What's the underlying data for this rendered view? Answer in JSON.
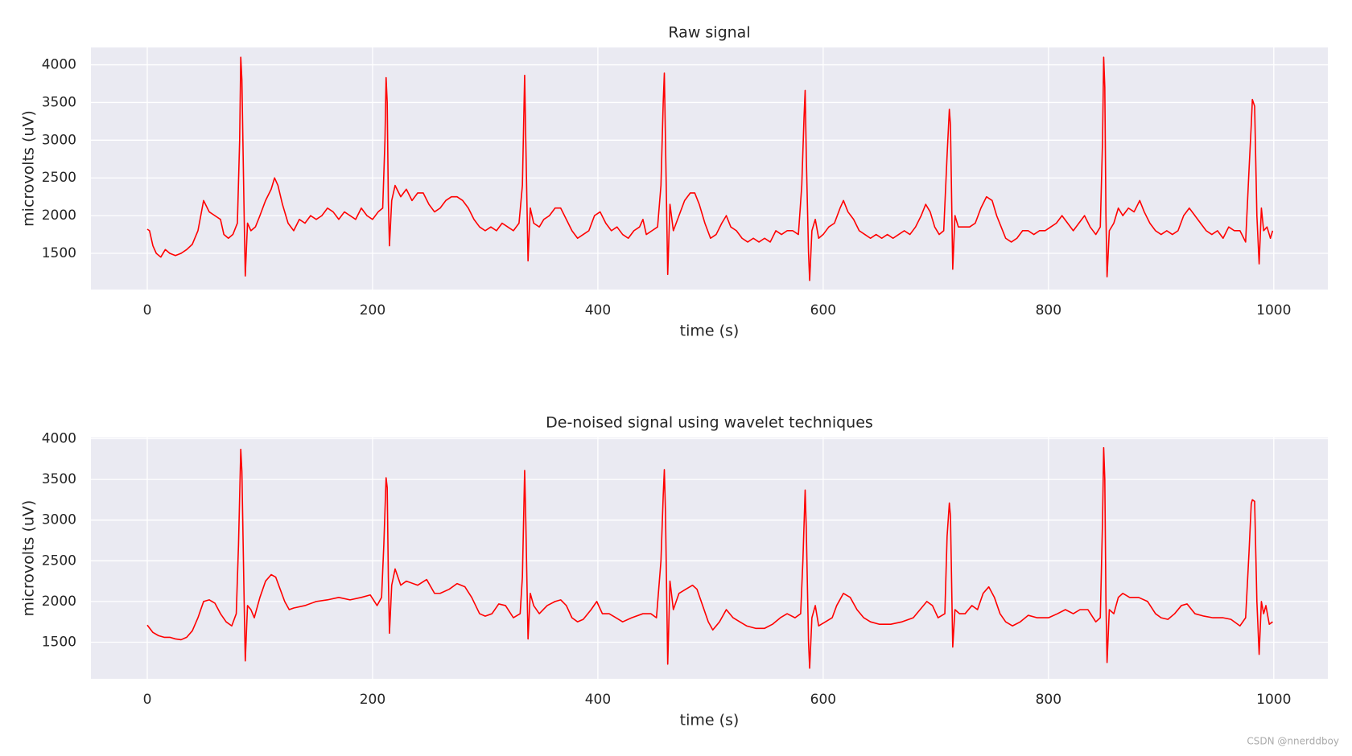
{
  "chart_data": [
    {
      "type": "line",
      "title": "Raw signal",
      "xlabel": "time (s)",
      "ylabel": "microvolts (uV)",
      "xlim": [
        -50,
        1048
      ],
      "ylim": [
        1020,
        4230
      ],
      "xticks": [
        0,
        200,
        400,
        600,
        800,
        1000
      ],
      "yticks": [
        1500,
        2000,
        2500,
        3000,
        3500,
        4000
      ],
      "grid": true,
      "series": [
        {
          "name": "raw",
          "color": "#ff0000",
          "x": [
            0,
            2,
            5,
            8,
            12,
            16,
            20,
            25,
            30,
            35,
            40,
            45,
            50,
            55,
            60,
            65,
            68,
            72,
            76,
            80,
            82,
            83,
            84,
            86,
            87,
            89,
            92,
            96,
            100,
            105,
            110,
            113,
            116,
            120,
            125,
            130,
            135,
            140,
            145,
            150,
            155,
            160,
            165,
            170,
            175,
            180,
            185,
            190,
            195,
            200,
            205,
            209,
            211,
            212,
            213,
            214,
            215,
            217,
            220,
            225,
            230,
            235,
            240,
            245,
            250,
            255,
            260,
            265,
            270,
            275,
            280,
            285,
            290,
            295,
            300,
            305,
            310,
            315,
            320,
            325,
            330,
            333,
            335,
            336,
            338,
            340,
            343,
            348,
            352,
            357,
            362,
            367,
            372,
            377,
            382,
            387,
            392,
            397,
            402,
            407,
            412,
            417,
            422,
            427,
            432,
            437,
            440,
            443,
            448,
            453,
            456,
            458,
            459,
            460,
            462,
            464,
            467,
            472,
            477,
            482,
            486,
            490,
            495,
            500,
            505,
            510,
            514,
            518,
            523,
            528,
            533,
            538,
            543,
            548,
            553,
            558,
            563,
            568,
            573,
            578,
            581,
            583,
            584,
            585,
            587,
            588,
            590,
            593,
            596,
            600,
            605,
            610,
            615,
            618,
            622,
            627,
            632,
            637,
            642,
            647,
            652,
            657,
            662,
            667,
            672,
            677,
            682,
            687,
            691,
            695,
            699,
            703,
            707,
            710,
            712,
            713,
            715,
            717,
            720,
            725,
            730,
            735,
            740,
            745,
            750,
            754,
            758,
            762,
            767,
            772,
            777,
            782,
            787,
            792,
            797,
            802,
            807,
            812,
            817,
            822,
            827,
            832,
            837,
            842,
            846,
            848,
            849,
            850,
            851,
            852,
            854,
            858,
            862,
            866,
            871,
            876,
            881,
            885,
            890,
            895,
            900,
            905,
            910,
            915,
            920,
            925,
            930,
            935,
            940,
            945,
            950,
            955,
            960,
            965,
            970,
            975,
            978,
            980,
            981,
            983,
            985,
            987,
            989,
            991,
            994,
            997,
            999
          ],
          "values": [
            1820,
            1800,
            1600,
            1500,
            1450,
            1550,
            1500,
            1470,
            1500,
            1550,
            1620,
            1800,
            2200,
            2050,
            2000,
            1950,
            1750,
            1700,
            1750,
            1900,
            3000,
            4100,
            3800,
            2000,
            1200,
            1900,
            1800,
            1850,
            2000,
            2200,
            2350,
            2500,
            2400,
            2150,
            1900,
            1800,
            1950,
            1900,
            2000,
            1950,
            2000,
            2100,
            2050,
            1950,
            2050,
            2000,
            1950,
            2100,
            2000,
            1950,
            2050,
            2100,
            3000,
            3830,
            3500,
            2200,
            1600,
            2200,
            2400,
            2250,
            2350,
            2200,
            2300,
            2300,
            2150,
            2050,
            2100,
            2200,
            2250,
            2250,
            2200,
            2100,
            1950,
            1850,
            1800,
            1850,
            1800,
            1900,
            1850,
            1800,
            1900,
            2400,
            3860,
            3000,
            1400,
            2100,
            1900,
            1850,
            1950,
            2000,
            2100,
            2100,
            1950,
            1800,
            1700,
            1750,
            1800,
            2000,
            2050,
            1900,
            1800,
            1850,
            1750,
            1700,
            1800,
            1850,
            1950,
            1750,
            1800,
            1850,
            2400,
            3500,
            3890,
            3000,
            1220,
            2150,
            1800,
            2000,
            2200,
            2300,
            2300,
            2150,
            1900,
            1700,
            1750,
            1900,
            2000,
            1850,
            1800,
            1700,
            1650,
            1700,
            1650,
            1700,
            1650,
            1800,
            1750,
            1800,
            1800,
            1750,
            2400,
            3300,
            3660,
            2800,
            1500,
            1140,
            1800,
            1950,
            1700,
            1750,
            1850,
            1900,
            2100,
            2200,
            2050,
            1950,
            1800,
            1750,
            1700,
            1750,
            1700,
            1750,
            1700,
            1750,
            1800,
            1750,
            1850,
            2000,
            2150,
            2050,
            1850,
            1750,
            1800,
            2800,
            3410,
            3200,
            1290,
            2000,
            1850,
            1850,
            1850,
            1900,
            2100,
            2250,
            2200,
            2000,
            1850,
            1700,
            1650,
            1700,
            1800,
            1800,
            1750,
            1800,
            1800,
            1850,
            1900,
            2000,
            1900,
            1800,
            1900,
            2000,
            1850,
            1750,
            1850,
            3000,
            4100,
            3700,
            2000,
            1190,
            1800,
            1900,
            2100,
            2000,
            2100,
            2050,
            2200,
            2050,
            1900,
            1800,
            1750,
            1800,
            1750,
            1800,
            2000,
            2100,
            2000,
            1900,
            1800,
            1750,
            1800,
            1700,
            1850,
            1800,
            1800,
            1650,
            2600,
            3200,
            3540,
            3450,
            2000,
            1360,
            2100,
            1800,
            1850,
            1700,
            1800
          ]
        }
      ]
    },
    {
      "type": "line",
      "title": "De-noised signal using wavelet techniques",
      "xlabel": "time (s)",
      "ylabel": "microvolts (uV)",
      "xlim": [
        -50,
        1048
      ],
      "ylim": [
        1050,
        4015
      ],
      "xticks": [
        0,
        200,
        400,
        600,
        800,
        1000
      ],
      "yticks": [
        1500,
        2000,
        2500,
        3000,
        3500,
        4000
      ],
      "grid": true,
      "series": [
        {
          "name": "denoised",
          "color": "#ff0000",
          "x": [
            0,
            5,
            10,
            15,
            20,
            25,
            30,
            35,
            40,
            45,
            50,
            55,
            60,
            65,
            70,
            75,
            79,
            81,
            83,
            84,
            86,
            87,
            89,
            92,
            95,
            100,
            105,
            110,
            114,
            118,
            122,
            126,
            130,
            140,
            150,
            160,
            170,
            180,
            190,
            198,
            204,
            208,
            210,
            212,
            213,
            214,
            215,
            217,
            220,
            225,
            230,
            240,
            248,
            255,
            260,
            268,
            275,
            282,
            288,
            295,
            300,
            306,
            312,
            318,
            325,
            331,
            333,
            335,
            336,
            338,
            340,
            343,
            348,
            355,
            362,
            367,
            372,
            377,
            382,
            387,
            394,
            399,
            404,
            410,
            416,
            422,
            430,
            440,
            447,
            452,
            456,
            458,
            459,
            460,
            462,
            464,
            467,
            472,
            478,
            484,
            488,
            493,
            498,
            502,
            508,
            514,
            520,
            526,
            532,
            540,
            548,
            555,
            562,
            568,
            575,
            580,
            582,
            584,
            585,
            587,
            588,
            590,
            593,
            596,
            602,
            608,
            612,
            618,
            624,
            630,
            636,
            642,
            650,
            660,
            670,
            680,
            686,
            692,
            697,
            702,
            708,
            710,
            712,
            713,
            715,
            717,
            721,
            726,
            732,
            737,
            742,
            747,
            752,
            757,
            762,
            768,
            775,
            782,
            790,
            800,
            808,
            815,
            822,
            828,
            835,
            842,
            846,
            848,
            849,
            850,
            851,
            852,
            854,
            858,
            862,
            866,
            872,
            880,
            888,
            895,
            900,
            906,
            912,
            918,
            923,
            930,
            938,
            946,
            955,
            962,
            970,
            975,
            978,
            980,
            981,
            983,
            985,
            987,
            989,
            991,
            993,
            996,
            999
          ],
          "values": [
            1710,
            1620,
            1580,
            1560,
            1560,
            1540,
            1530,
            1560,
            1640,
            1800,
            2000,
            2020,
            1980,
            1850,
            1750,
            1700,
            1850,
            2700,
            3870,
            3600,
            2000,
            1270,
            1950,
            1900,
            1800,
            2050,
            2250,
            2330,
            2300,
            2150,
            2000,
            1900,
            1920,
            1950,
            2000,
            2020,
            2050,
            2020,
            2050,
            2080,
            1950,
            2050,
            2700,
            3520,
            3400,
            2300,
            1610,
            2200,
            2400,
            2200,
            2250,
            2200,
            2270,
            2100,
            2100,
            2150,
            2220,
            2180,
            2050,
            1850,
            1820,
            1850,
            1970,
            1950,
            1800,
            1850,
            2300,
            3610,
            3000,
            1540,
            2100,
            1950,
            1850,
            1950,
            2000,
            2020,
            1950,
            1800,
            1750,
            1780,
            1900,
            2000,
            1850,
            1850,
            1800,
            1750,
            1800,
            1850,
            1850,
            1800,
            2500,
            3300,
            3620,
            3100,
            1230,
            2250,
            1900,
            2100,
            2150,
            2200,
            2150,
            1950,
            1750,
            1650,
            1750,
            1900,
            1800,
            1750,
            1700,
            1670,
            1670,
            1720,
            1800,
            1850,
            1800,
            1850,
            2500,
            3370,
            2900,
            1500,
            1180,
            1800,
            1950,
            1700,
            1750,
            1800,
            1950,
            2100,
            2050,
            1900,
            1800,
            1750,
            1720,
            1720,
            1750,
            1800,
            1900,
            2000,
            1950,
            1800,
            1850,
            2800,
            3210,
            3050,
            1440,
            1900,
            1850,
            1850,
            1950,
            1900,
            2100,
            2180,
            2050,
            1850,
            1750,
            1700,
            1750,
            1830,
            1800,
            1800,
            1850,
            1900,
            1850,
            1900,
            1900,
            1750,
            1800,
            3000,
            3890,
            3500,
            2000,
            1250,
            1900,
            1850,
            2050,
            2100,
            2050,
            2050,
            2000,
            1850,
            1800,
            1780,
            1850,
            1950,
            1970,
            1850,
            1820,
            1800,
            1800,
            1780,
            1700,
            1800,
            2600,
            3200,
            3250,
            3230,
            2000,
            1350,
            2000,
            1850,
            1950,
            1720,
            1750
          ]
        }
      ]
    }
  ],
  "watermark": "CSDN @nnerddboy"
}
